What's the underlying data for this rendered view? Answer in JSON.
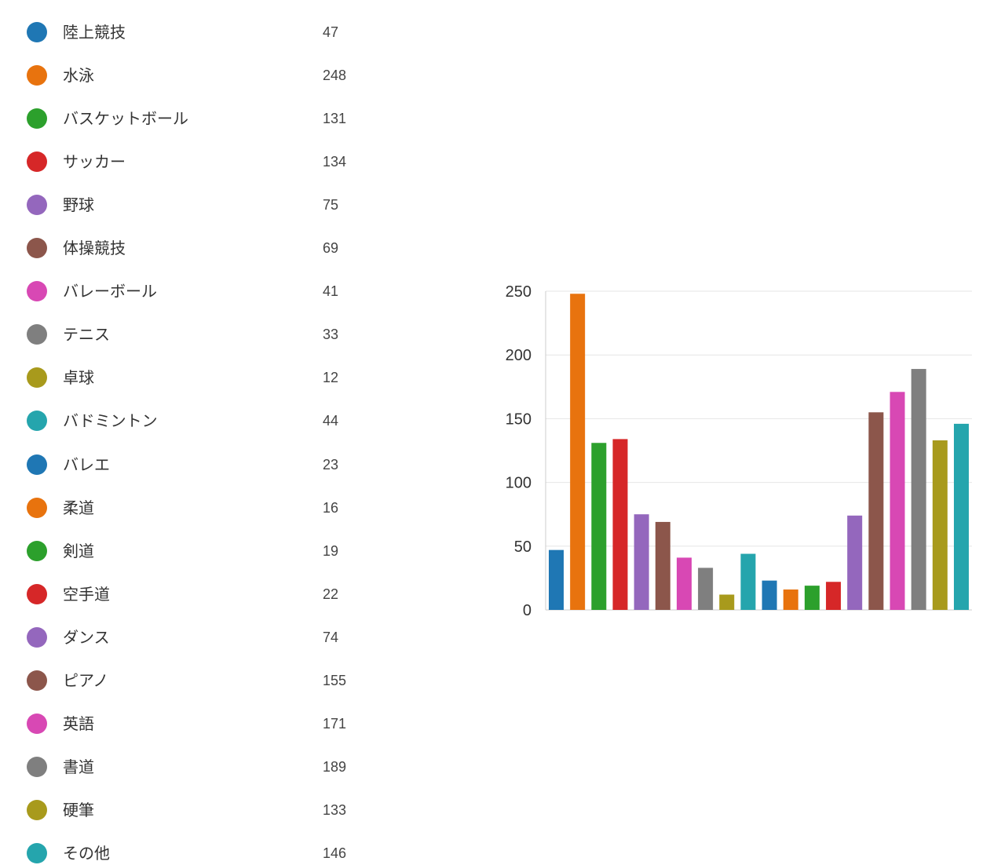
{
  "colors": {
    "blue": "#1f77b4",
    "orange": "#e8730e",
    "green": "#2ca02c",
    "red": "#d62728",
    "purple": "#9467bd",
    "brown": "#8c564b",
    "pink": "#d848b4",
    "gray": "#7f7f7f",
    "olive": "#a89a1c",
    "teal": "#25a5ad",
    "gridline": "#e6e6e6",
    "axis": "#cccccc"
  },
  "chart_data": {
    "type": "bar",
    "categories": [
      "陸上競技",
      "水泳",
      "バスケットボール",
      "サッカー",
      "野球",
      "体操競技",
      "バレーボール",
      "テニス",
      "卓球",
      "バドミントン",
      "バレエ",
      "柔道",
      "剣道",
      "空手道",
      "ダンス",
      "ピアノ",
      "英語",
      "書道",
      "硬筆",
      "その他"
    ],
    "values": [
      47,
      248,
      131,
      134,
      75,
      69,
      41,
      33,
      12,
      44,
      23,
      16,
      19,
      22,
      74,
      155,
      171,
      189,
      133,
      146
    ],
    "value_labels": [
      "47",
      "248",
      "131",
      "134",
      "75",
      "69",
      "41",
      "33",
      "12",
      "44",
      "23",
      "16",
      "19",
      "22",
      "74",
      "155",
      "171",
      "189",
      "133",
      "146"
    ],
    "bar_colors": [
      "#1f77b4",
      "#e8730e",
      "#2ca02c",
      "#d62728",
      "#9467bd",
      "#8c564b",
      "#d848b4",
      "#7f7f7f",
      "#a89a1c",
      "#25a5ad",
      "#1f77b4",
      "#e8730e",
      "#2ca02c",
      "#d62728",
      "#9467bd",
      "#8c564b",
      "#d848b4",
      "#7f7f7f",
      "#a89a1c",
      "#25a5ad"
    ],
    "ylim": [
      0,
      250
    ],
    "yticks": [
      0,
      50,
      100,
      150,
      200,
      250
    ],
    "ytick_labels": [
      "0",
      "50",
      "100",
      "150",
      "200",
      "250"
    ],
    "grid": true,
    "legend_placement": "left",
    "title": "",
    "xlabel": "",
    "ylabel": ""
  }
}
